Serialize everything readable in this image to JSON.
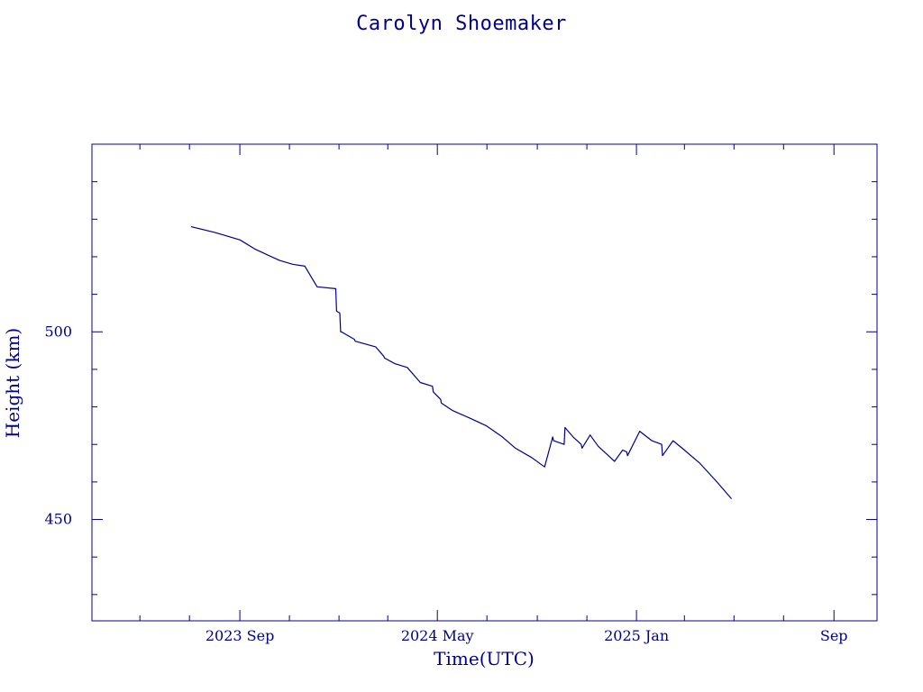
{
  "chart_data": {
    "type": "line",
    "title": "Carolyn Shoemaker",
    "xlabel": "Time(UTC)",
    "ylabel": "Height (km)",
    "colors": {
      "axis": "#00008b",
      "line": "#00008b"
    },
    "grid": false,
    "xlim": [
      "2023-03-03",
      "2025-10-24"
    ],
    "ylim": [
      423,
      550
    ],
    "x_ticks": [
      {
        "date": "2023-09-01",
        "label": "2023 Sep"
      },
      {
        "date": "2024-05-01",
        "label": "2024 May"
      },
      {
        "date": "2025-01-01",
        "label": "2025 Jan"
      },
      {
        "date": "2025-09-01",
        "label": "Sep"
      }
    ],
    "x_minor_ticks": [
      "2023-05-01",
      "2023-07-01",
      "2023-11-01",
      "2024-01-01",
      "2024-03-01",
      "2024-07-01",
      "2024-09-01",
      "2024-11-01",
      "2025-03-01",
      "2025-05-01",
      "2025-07-01"
    ],
    "y_ticks": [
      450,
      500
    ],
    "y_minor_ticks": [
      430,
      440,
      460,
      470,
      480,
      490,
      510,
      520,
      530,
      540
    ],
    "series": [
      {
        "x": [
          "2023-07-03",
          "2023-08-01",
          "2023-09-01",
          "2023-09-20",
          "2023-10-05",
          "2023-10-20",
          "2023-11-05",
          "2023-11-20",
          "2023-12-05",
          "2023-12-28",
          "2023-12-29",
          "2024-01-02",
          "2024-01-03",
          "2024-01-04",
          "2024-01-20",
          "2024-01-21",
          "2024-02-15",
          "2024-02-25",
          "2024-02-26",
          "2024-03-10",
          "2024-03-25",
          "2024-04-10",
          "2024-04-25",
          "2024-04-26",
          "2024-05-05",
          "2024-05-06",
          "2024-05-20",
          "2024-06-10",
          "2024-06-30",
          "2024-07-20",
          "2024-08-05",
          "2024-08-25",
          "2024-09-10",
          "2024-09-20",
          "2024-09-21",
          "2024-10-04",
          "2024-10-05",
          "2024-10-15",
          "2024-10-25",
          "2024-10-26",
          "2024-11-05",
          "2024-11-15",
          "2024-11-25",
          "2024-12-05",
          "2024-12-15",
          "2024-12-20",
          "2024-12-21",
          "2025-01-05",
          "2025-01-20",
          "2025-02-01",
          "2025-02-02",
          "2025-02-15",
          "2025-03-01",
          "2025-03-20",
          "2025-04-10",
          "2025-04-28"
        ],
        "y": [
          528,
          526.5,
          524.5,
          522,
          520.5,
          519,
          518,
          517.5,
          512,
          511.5,
          505.5,
          505,
          500,
          500,
          498,
          497.5,
          496,
          493.5,
          493,
          491.5,
          490.5,
          486.5,
          485.5,
          484,
          482,
          481,
          479,
          477,
          475,
          472,
          469,
          466.5,
          464,
          472,
          471,
          470,
          474.5,
          472,
          470,
          469,
          472.5,
          469.5,
          467.5,
          465.5,
          468.5,
          468,
          467,
          473.5,
          471,
          470,
          467,
          471,
          468.5,
          465,
          460,
          455.5
        ]
      }
    ]
  }
}
